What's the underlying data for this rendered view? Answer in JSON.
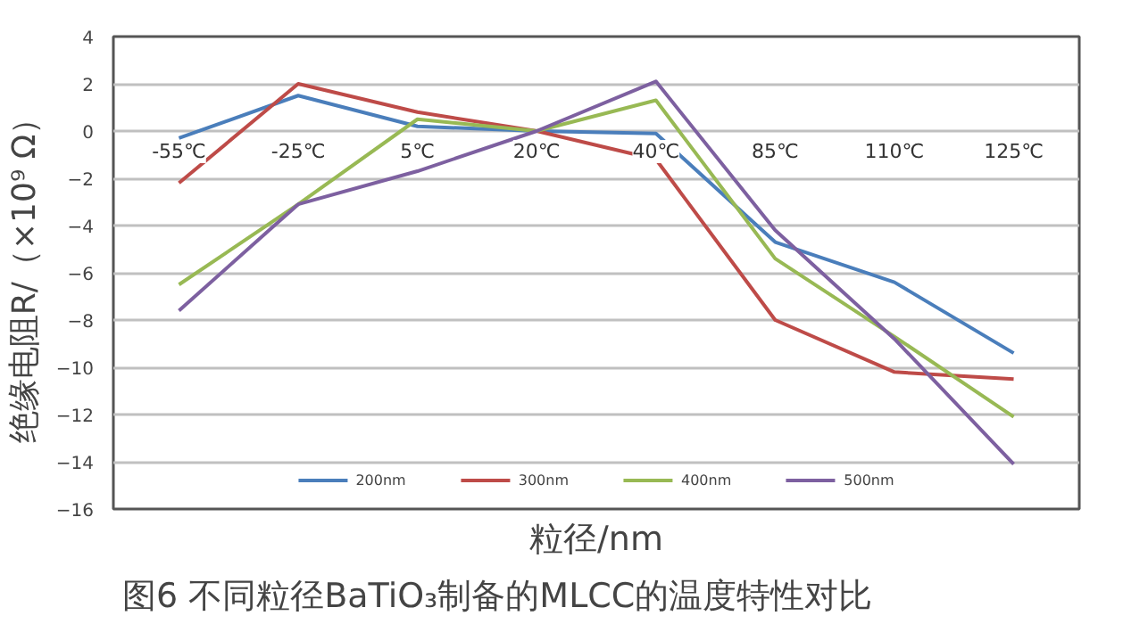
{
  "chart_data": {
    "type": "line",
    "categories": [
      "-55℃",
      "-25℃",
      "5℃",
      "20℃",
      "40℃",
      "85℃",
      "110℃",
      "125℃"
    ],
    "series": [
      {
        "name": "200nm",
        "color": "#4a7ebb",
        "values": [
          -0.3,
          1.5,
          0.2,
          0,
          -0.1,
          -4.7,
          -6.4,
          -9.4
        ]
      },
      {
        "name": "300nm",
        "color": "#be4b48",
        "values": [
          -2.2,
          2.0,
          0.8,
          0,
          -1.2,
          -8.0,
          -10.2,
          -10.5
        ]
      },
      {
        "name": "400nm",
        "color": "#98b954",
        "values": [
          -6.5,
          -3.1,
          0.5,
          0,
          1.3,
          -5.4,
          -8.7,
          -12.1
        ]
      },
      {
        "name": "500nm",
        "color": "#7d60a0",
        "values": [
          -7.6,
          -3.1,
          -1.7,
          0,
          2.1,
          -4.2,
          -8.8,
          -14.1
        ]
      }
    ],
    "ylim": [
      -16,
      4
    ],
    "yticks": [
      -16,
      -14,
      -12,
      -10,
      -8,
      -6,
      -4,
      -2,
      0,
      2,
      4
    ],
    "grid": "y",
    "legend": "bottom",
    "marker": "none",
    "line_style": "solid",
    "xlabel": "粒径/nm",
    "ylabel": "绝缘电阻R/（×10⁹ Ω）",
    "annotations": [
      "图6  不同粒径BaTiO₃制备的MLCC的温度特性对比"
    ]
  }
}
